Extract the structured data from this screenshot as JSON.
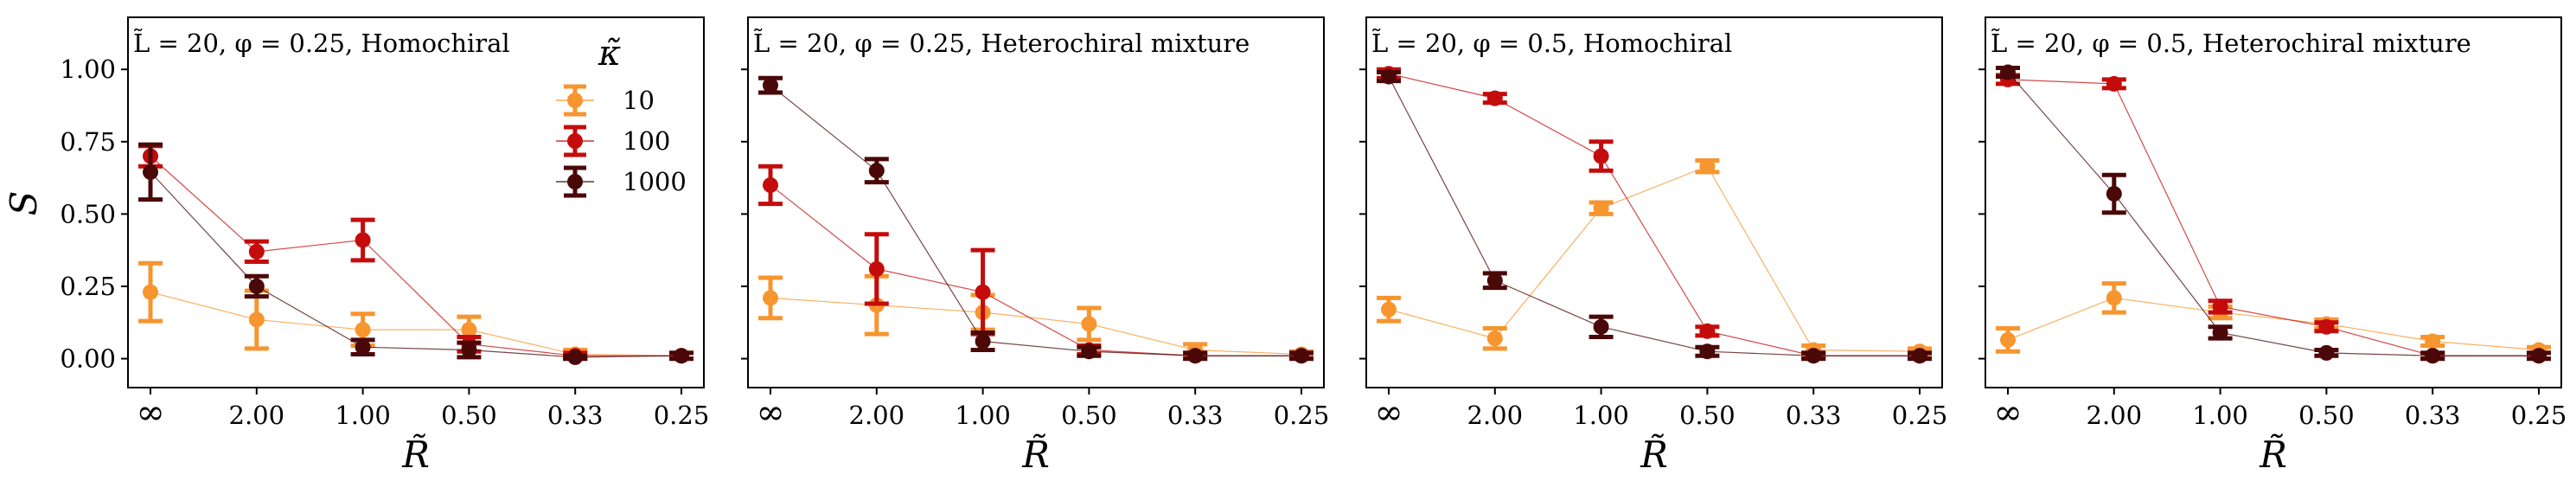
{
  "chart_data": {
    "type": "line",
    "y_axis_label": "S",
    "x_axis_label": "R̃",
    "categories": [
      "∞",
      "2.00",
      "1.00",
      "0.50",
      "0.33",
      "0.25"
    ],
    "y_ticks": [
      "0.00",
      "0.25",
      "0.50",
      "0.75",
      "1.00"
    ],
    "y_tick_values": [
      0,
      0.25,
      0.5,
      0.75,
      1.0
    ],
    "ylim": [
      -0.1,
      1.18
    ],
    "legend": {
      "title": "κ̃",
      "entries": [
        "10",
        "100",
        "1000"
      ],
      "placement": "top-right of first panel"
    },
    "series_colors": {
      "10": "#f7952f",
      "100": "#c40c0c",
      "1000": "#4a0808"
    },
    "panels": [
      {
        "title": "L̃ = 20, φ = 0.25, Homochiral",
        "series": [
          {
            "name": "10",
            "values": [
              0.23,
              0.135,
              0.1,
              0.1,
              0.015,
              0.01
            ],
            "errors": [
              0.1,
              0.1,
              0.055,
              0.045,
              0.015,
              0.01
            ]
          },
          {
            "name": "100",
            "values": [
              0.7,
              0.37,
              0.41,
              0.05,
              0.01,
              0.01
            ],
            "errors": [
              0.035,
              0.035,
              0.07,
              0.025,
              0.01,
              0.01
            ]
          },
          {
            "name": "1000",
            "values": [
              0.645,
              0.25,
              0.04,
              0.03,
              0.005,
              0.01
            ],
            "errors": [
              0.095,
              0.035,
              0.025,
              0.025,
              0.005,
              0.01
            ]
          }
        ]
      },
      {
        "title": "L̃ = 20, φ = 0.25, Heterochiral mixture",
        "series": [
          {
            "name": "10",
            "values": [
              0.21,
              0.185,
              0.16,
              0.12,
              0.03,
              0.015
            ],
            "errors": [
              0.07,
              0.1,
              0.06,
              0.055,
              0.02,
              0.01
            ]
          },
          {
            "name": "100",
            "values": [
              0.6,
              0.31,
              0.23,
              0.03,
              0.01,
              0.01
            ],
            "errors": [
              0.065,
              0.12,
              0.145,
              0.015,
              0.01,
              0.01
            ]
          },
          {
            "name": "1000",
            "values": [
              0.945,
              0.65,
              0.06,
              0.025,
              0.01,
              0.01
            ],
            "errors": [
              0.025,
              0.04,
              0.03,
              0.015,
              0.01,
              0.01
            ]
          }
        ]
      },
      {
        "title": "L̃ = 20, φ = 0.5, Homochiral",
        "series": [
          {
            "name": "10",
            "values": [
              0.17,
              0.07,
              0.52,
              0.665,
              0.03,
              0.025
            ],
            "errors": [
              0.04,
              0.035,
              0.02,
              0.02,
              0.015,
              0.01
            ]
          },
          {
            "name": "100",
            "values": [
              0.985,
              0.9,
              0.7,
              0.095,
              0.01,
              0.01
            ],
            "errors": [
              0.015,
              0.015,
              0.05,
              0.015,
              0.01,
              0.01
            ]
          },
          {
            "name": "1000",
            "values": [
              0.975,
              0.27,
              0.11,
              0.025,
              0.01,
              0.01
            ],
            "errors": [
              0.015,
              0.025,
              0.035,
              0.015,
              0.01,
              0.01
            ]
          }
        ]
      },
      {
        "title": "L̃ = 20, φ = 0.5, Heterochiral mixture",
        "series": [
          {
            "name": "10",
            "values": [
              0.065,
              0.21,
              0.16,
              0.12,
              0.06,
              0.03
            ],
            "errors": [
              0.04,
              0.05,
              0.02,
              0.015,
              0.015,
              0.01
            ]
          },
          {
            "name": "100",
            "values": [
              0.965,
              0.95,
              0.18,
              0.11,
              0.01,
              0.01
            ],
            "errors": [
              0.015,
              0.015,
              0.02,
              0.015,
              0.01,
              0.01
            ]
          },
          {
            "name": "1000",
            "values": [
              0.99,
              0.57,
              0.09,
              0.02,
              0.01,
              0.01
            ],
            "errors": [
              0.015,
              0.065,
              0.02,
              0.01,
              0.01,
              0.01
            ]
          }
        ]
      }
    ]
  }
}
